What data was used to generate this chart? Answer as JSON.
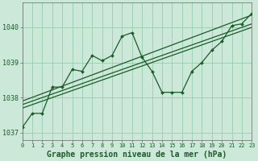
{
  "title": "Graphe pression niveau de la mer (hPa)",
  "bg_color": "#cce8d8",
  "grid_color": "#99ccb0",
  "line_color": "#1a5c28",
  "x_min": 0,
  "x_max": 23,
  "y_min": 1036.8,
  "y_max": 1040.7,
  "y_ticks": [
    1037,
    1038,
    1039,
    1040
  ],
  "series1_x": [
    0,
    1,
    2,
    3,
    4,
    5,
    6,
    7,
    8,
    9,
    10,
    11,
    12,
    13,
    14,
    15,
    16,
    17,
    18,
    19,
    20,
    21,
    22,
    23
  ],
  "series1_y": [
    1037.15,
    1037.55,
    1037.55,
    1038.3,
    1038.3,
    1038.8,
    1038.75,
    1039.2,
    1039.05,
    1039.2,
    1039.75,
    1039.85,
    1039.15,
    1038.75,
    1038.15,
    1038.15,
    1038.15,
    1038.75,
    1039.0,
    1039.35,
    1039.6,
    1040.05,
    1040.1,
    1040.4
  ],
  "trend_lines": [
    {
      "x": [
        0,
        23
      ],
      "y": [
        1037.7,
        1040.0
      ]
    },
    {
      "x": [
        0,
        23
      ],
      "y": [
        1037.8,
        1040.1
      ]
    },
    {
      "x": [
        0,
        23
      ],
      "y": [
        1037.9,
        1040.35
      ]
    }
  ],
  "xlabel_fontsize": 7,
  "ytick_fontsize": 6,
  "xtick_fontsize": 5
}
